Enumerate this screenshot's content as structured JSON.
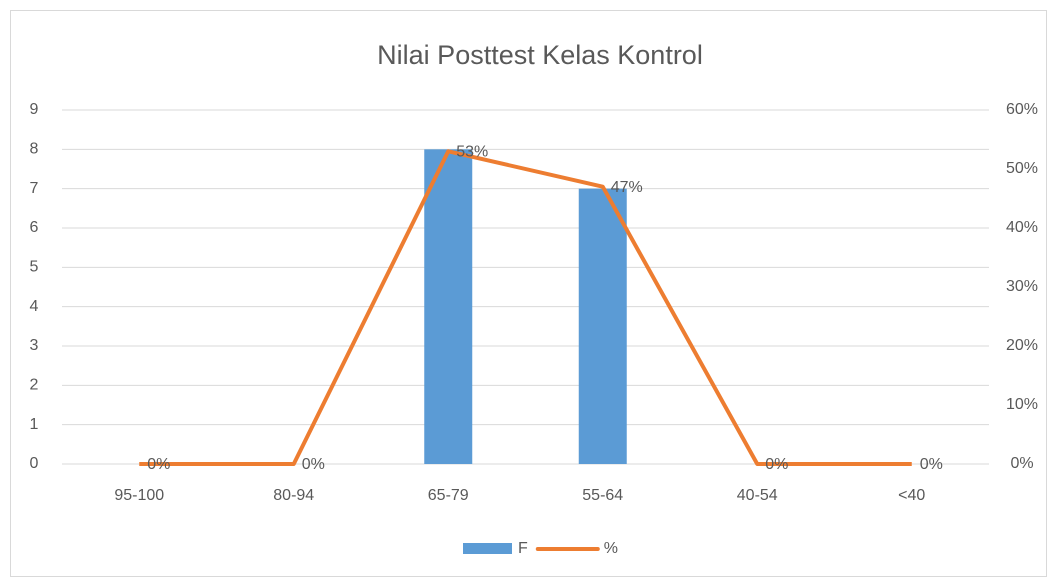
{
  "chart_data": {
    "type": "combo",
    "title": "Nilai Posttest Kelas Kontrol",
    "categories": [
      "95-100",
      "80-94",
      "65-79",
      "55-64",
      "40-54",
      "<40"
    ],
    "series": [
      {
        "name": "F",
        "type": "bar",
        "color": "#5b9bd5",
        "values": [
          0,
          0,
          8,
          7,
          0,
          0
        ]
      },
      {
        "name": "%",
        "type": "line",
        "axis": "y2",
        "color": "#ed7d31",
        "values": [
          0,
          0,
          53,
          47,
          0,
          0
        ],
        "value_labels": [
          "0%",
          "0%",
          "53%",
          "47%",
          "0%",
          "0%"
        ]
      }
    ],
    "ylim": [
      0,
      9
    ],
    "yticks": [
      0,
      1,
      2,
      3,
      4,
      5,
      6,
      7,
      8,
      9
    ],
    "y2lim": [
      0,
      60
    ],
    "y2ticks": [
      {
        "value": 0,
        "label": "0%"
      },
      {
        "value": 10,
        "label": "10%"
      },
      {
        "value": 20,
        "label": "20%"
      },
      {
        "value": 30,
        "label": "30%"
      },
      {
        "value": 40,
        "label": "40%"
      },
      {
        "value": 50,
        "label": "50%"
      },
      {
        "value": 60,
        "label": "60%"
      }
    ],
    "grid": true,
    "legend": "bottom"
  }
}
